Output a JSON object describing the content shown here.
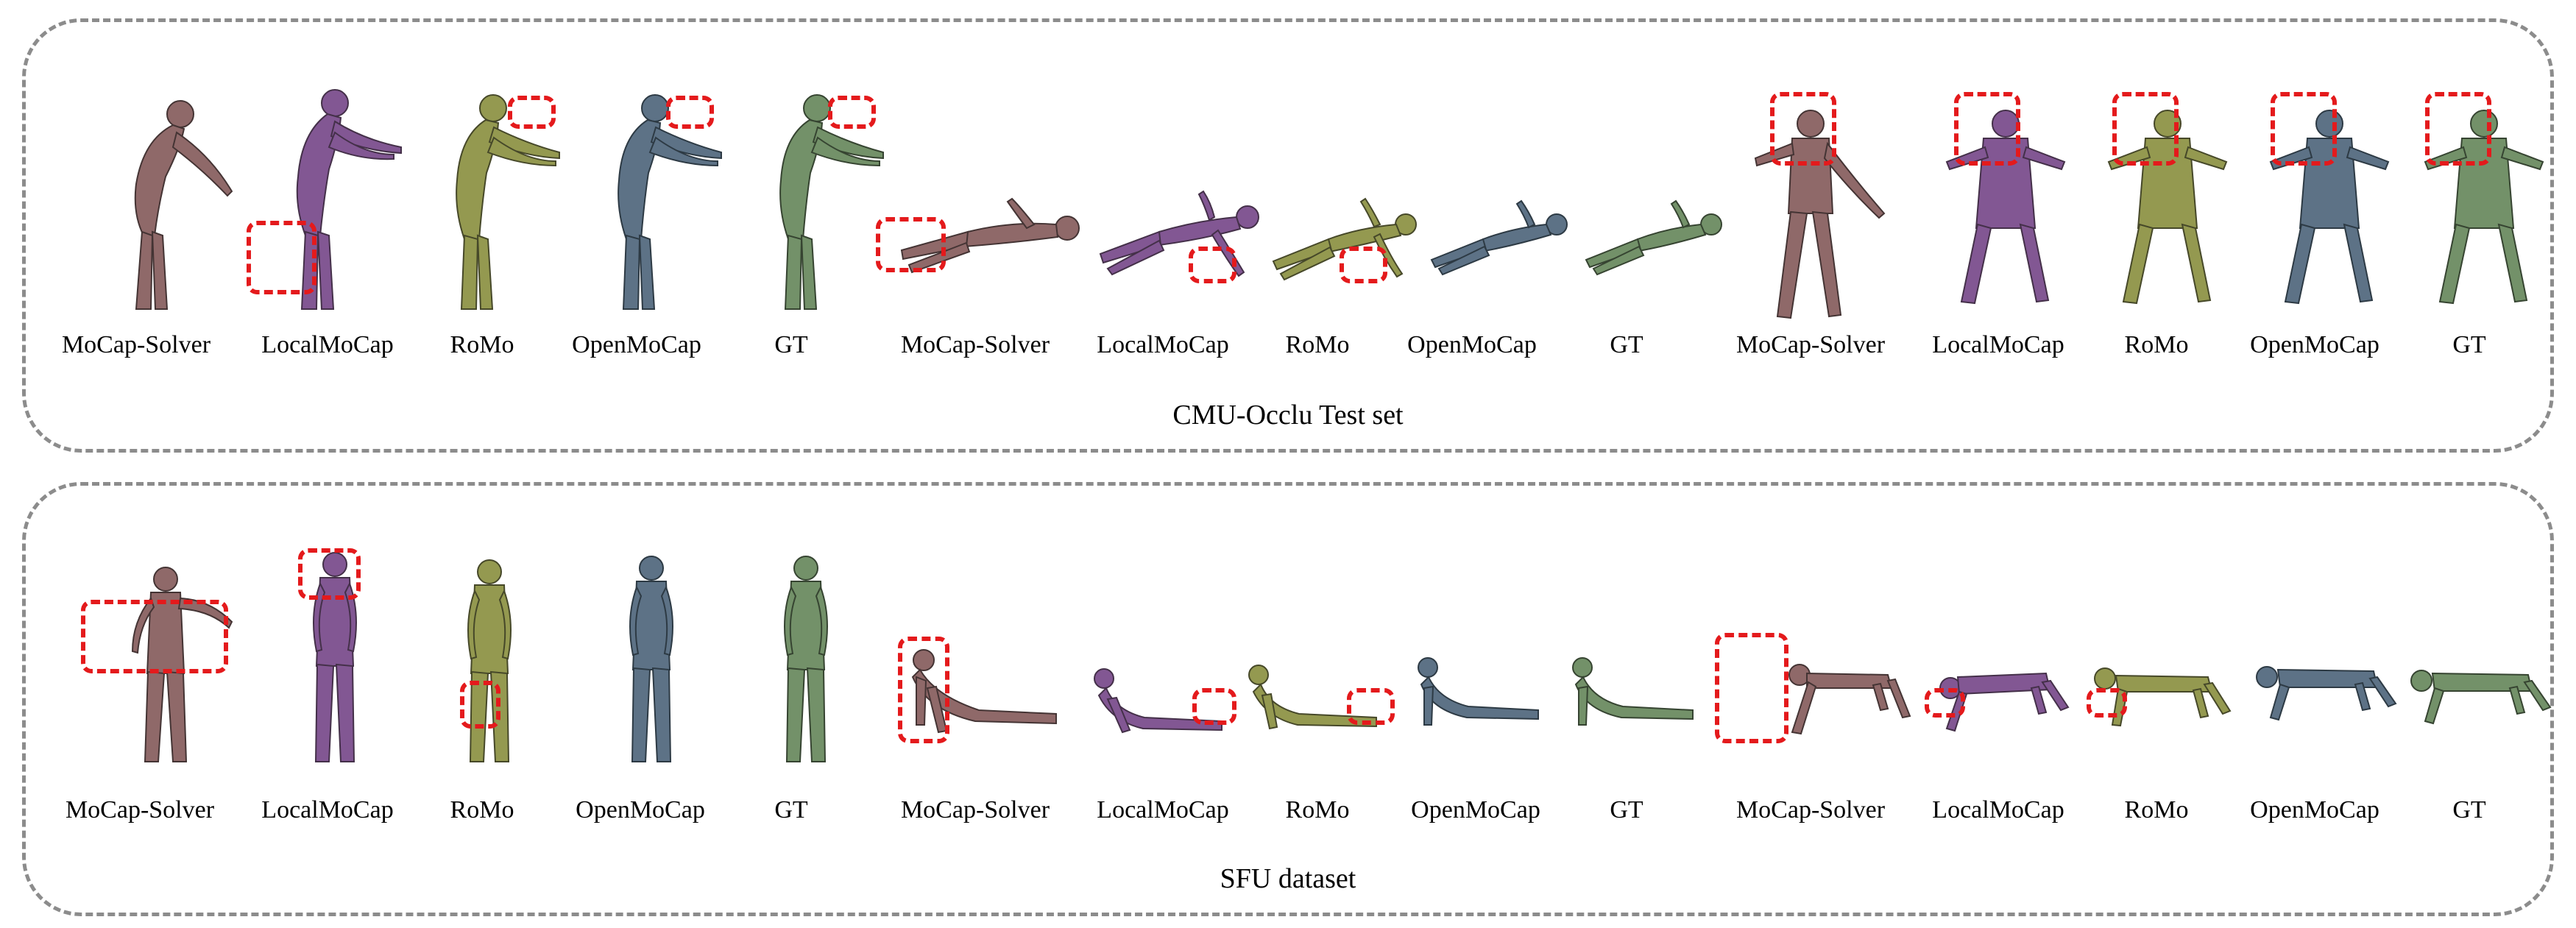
{
  "colors": {
    "MoCap-Solver": "#8a6262",
    "LocalMoCap": "#7c4f8e",
    "RoMo": "#8f9447",
    "OpenMoCap": "#556b80",
    "GT": "#6c8c62",
    "highlight": "#e41a1c"
  },
  "panels": [
    {
      "title": "CMU-Occlu Test set",
      "captions": [
        "MoCap-Solver",
        "LocalMoCap",
        "RoMo",
        "OpenMoCap",
        "GT",
        "MoCap-Solver",
        "LocalMoCap",
        "RoMo",
        "OpenMoCap",
        "GT",
        "MoCap-Solver",
        "LocalMoCap",
        "RoMo",
        "OpenMoCap",
        "GT"
      ]
    },
    {
      "title": "SFU dataset",
      "captions": [
        "MoCap-Solver",
        "LocalMoCap",
        "RoMo",
        "OpenMoCap",
        "GT",
        "MoCap-Solver",
        "LocalMoCap",
        "RoMo",
        "OpenMoCap",
        "GT",
        "MoCap-Solver",
        "LocalMoCap",
        "RoMo",
        "OpenMoCap",
        "GT"
      ]
    }
  ]
}
